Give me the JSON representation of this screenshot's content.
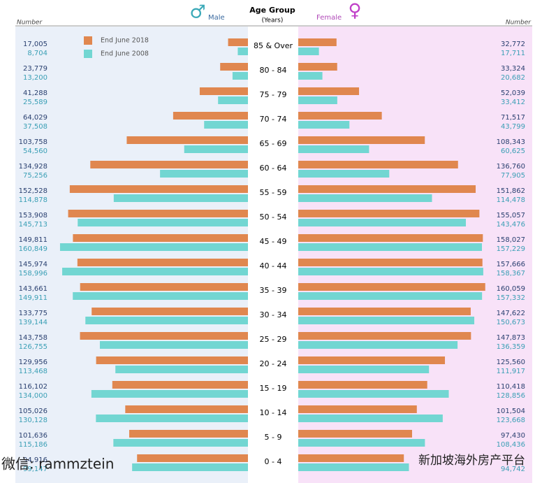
{
  "chart_data": {
    "type": "pyramid",
    "title": "Age Group",
    "subtitle": "(Years)",
    "left_label": "Male",
    "right_label": "Female",
    "number_label": "Number",
    "categories": [
      "85 & Over",
      "80 - 84",
      "75 - 79",
      "70 - 74",
      "65 - 69",
      "60 - 64",
      "55 - 59",
      "50 - 54",
      "45 - 49",
      "40 - 44",
      "35 - 39",
      "30 - 34",
      "25 - 29",
      "20 - 24",
      "15 - 19",
      "10 - 14",
      "5 - 9",
      "0 - 4"
    ],
    "xlim": [
      0,
      165000
    ],
    "series": [
      {
        "name": "End June 2018",
        "color": "#e0874f",
        "label_color": "#2a4070",
        "male": [
          17005,
          23779,
          41288,
          64029,
          103758,
          134928,
          152528,
          153908,
          149811,
          145974,
          143661,
          133775,
          143758,
          129956,
          116102,
          105026,
          101636,
          94916
        ],
        "male_labels": [
          "17,005",
          "23,779",
          "41,288",
          "64,029",
          "103,758",
          "134,928",
          "152,528",
          "153,908",
          "149,811",
          "145,974",
          "143,661",
          "133,775",
          "143,758",
          "129,956",
          "116,102",
          "105,026",
          "101,636",
          "94,916"
        ],
        "female": [
          32772,
          33324,
          52039,
          71517,
          108343,
          136760,
          151862,
          155057,
          158027,
          157666,
          160059,
          147622,
          147873,
          125560,
          110418,
          101504,
          97430,
          90400
        ],
        "female_labels": [
          "32,772",
          "33,324",
          "52,039",
          "71,517",
          "108,343",
          "136,760",
          "151,862",
          "155,057",
          "158,027",
          "157,666",
          "160,059",
          "147,622",
          "147,873",
          "125,560",
          "110,418",
          "101,504",
          "97,430",
          null
        ]
      },
      {
        "name": "End June 2008",
        "color": "#72d6d2",
        "label_color": "#3a9fb5",
        "male": [
          8704,
          13200,
          25589,
          37508,
          54560,
          75256,
          114878,
          145713,
          160849,
          158996,
          149911,
          139144,
          126755,
          113468,
          134000,
          130128,
          115186,
          99147
        ],
        "male_labels": [
          "8,704",
          "13,200",
          "25,589",
          "37,508",
          "54,560",
          "75,256",
          "114,878",
          "145,713",
          "160,849",
          "158,996",
          "149,911",
          "139,144",
          "126,755",
          "113,468",
          "134,000",
          "130,128",
          "115,186",
          "99,147"
        ],
        "female": [
          17711,
          20682,
          33412,
          43799,
          60625,
          77905,
          114478,
          143476,
          157229,
          158367,
          157332,
          150673,
          136359,
          111917,
          128856,
          123668,
          108436,
          94742
        ],
        "female_labels": [
          "17,711",
          "20,682",
          "33,412",
          "43,799",
          "60,625",
          "77,905",
          "114,478",
          "143,476",
          "157,229",
          "158,367",
          "157,332",
          "150,673",
          "136,359",
          "111,917",
          "128,856",
          "123,668",
          "108,436",
          "94,742"
        ]
      }
    ]
  },
  "watermarks": [
    "微信: rammztein",
    "新加坡海外房产平台"
  ]
}
